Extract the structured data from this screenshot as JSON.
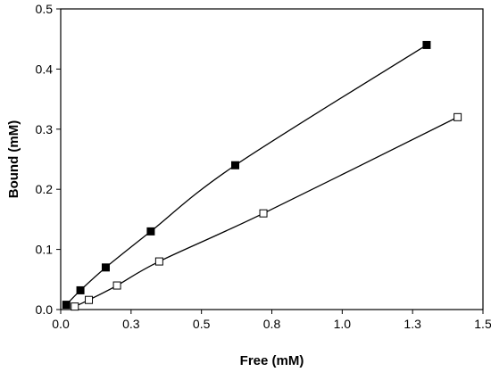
{
  "chart_data": {
    "type": "scatter",
    "title": "",
    "xlabel": "Free (mM)",
    "ylabel": "Bound (mM)",
    "xlim": [
      0.0,
      1.5
    ],
    "ylim": [
      0.0,
      0.5
    ],
    "grid": false,
    "x_tick_labels": [
      "0.0",
      "0.3",
      "0.5",
      "0.8",
      "1.0",
      "1.3",
      "1.5"
    ],
    "x_tick_values": [
      0.0,
      0.25,
      0.5,
      0.75,
      1.0,
      1.25,
      1.5
    ],
    "y_tick_labels": [
      "0.0",
      "0.1",
      "0.2",
      "0.3",
      "0.4",
      "0.5"
    ],
    "y_tick_values": [
      0.0,
      0.1,
      0.2,
      0.3,
      0.4,
      0.5
    ],
    "series": [
      {
        "marker": "filled-square",
        "color": "#000000",
        "x": [
          0.02,
          0.07,
          0.16,
          0.32,
          0.62,
          1.3
        ],
        "y": [
          0.008,
          0.032,
          0.07,
          0.13,
          0.24,
          0.44
        ]
      },
      {
        "marker": "open-square",
        "color": "#000000",
        "x": [
          0.05,
          0.1,
          0.2,
          0.35,
          0.72,
          1.41
        ],
        "y": [
          0.005,
          0.016,
          0.04,
          0.08,
          0.16,
          0.32
        ]
      }
    ]
  }
}
